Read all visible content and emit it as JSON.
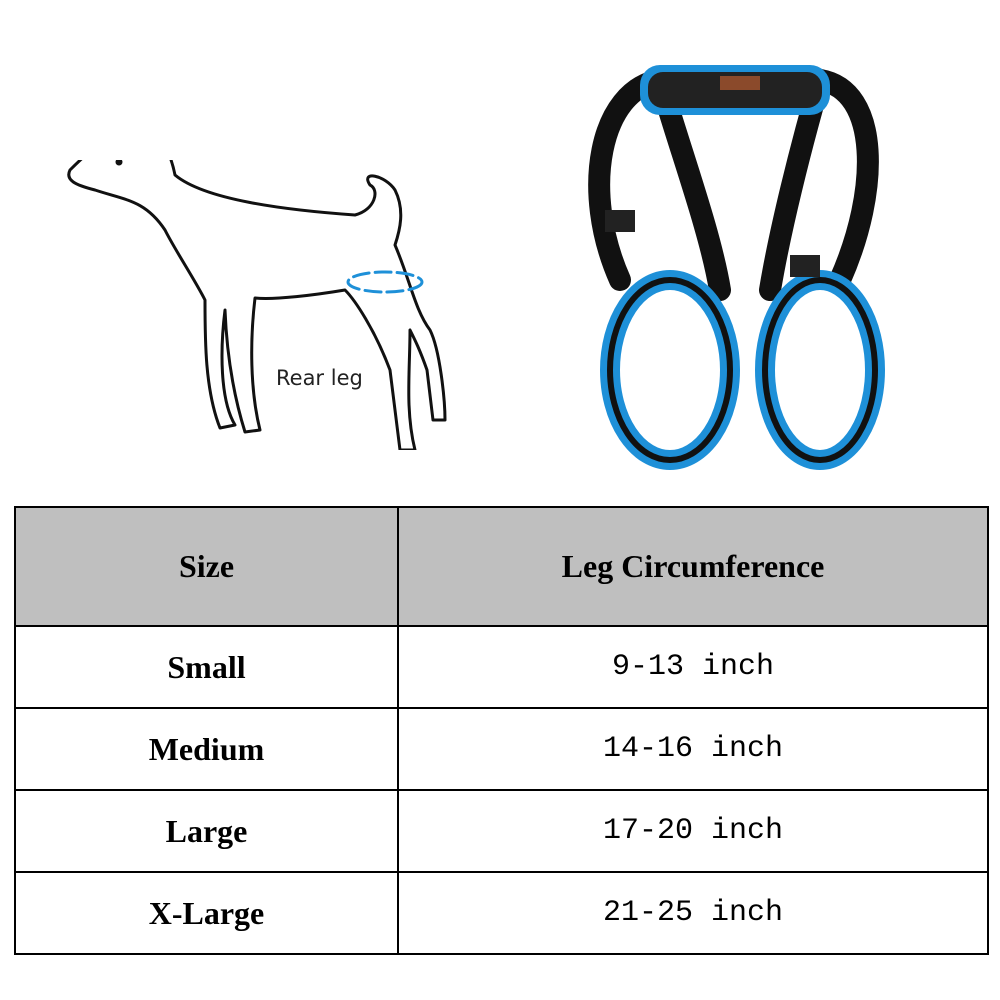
{
  "illustration": {
    "label": "Rear leg",
    "accent": "#1e90d8"
  },
  "table": {
    "headers": [
      "Size",
      "Leg Circumference"
    ],
    "rows": [
      {
        "size": "Small",
        "circumference": "9-13 inch"
      },
      {
        "size": "Medium",
        "circumference": "14-16 inch"
      },
      {
        "size": "Large",
        "circumference": "17-20 inch"
      },
      {
        "size": "X-Large",
        "circumference": "21-25 inch"
      }
    ],
    "header_bg": "#bfbfbf"
  }
}
